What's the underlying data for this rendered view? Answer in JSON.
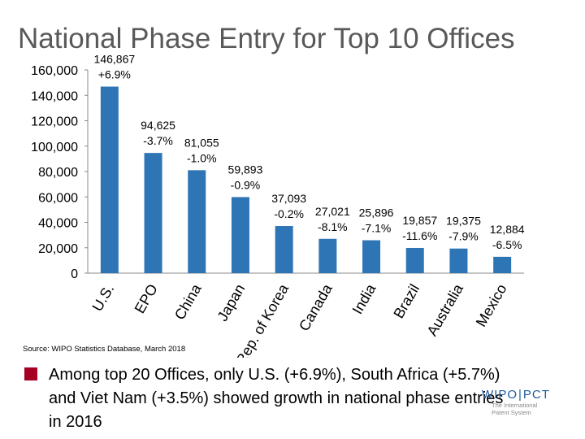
{
  "slide": {
    "title": "National Phase Entry for Top 10 Offices",
    "source": "Source: WIPO Statistics Database, March 2018",
    "bullet": "Among top 20 Offices, only U.S. (+6.9%), South Africa (+5.7%) and Viet Nam (+3.5%) showed growth in national phase entries in 2016",
    "bullet_color": "#a50021",
    "logo": {
      "left": "WIPO",
      "separator": "|",
      "right": "PCT",
      "line1": "The International",
      "line2": "Patent System",
      "color": "#1f5b9e"
    }
  },
  "chart_data": {
    "type": "bar",
    "title": "National Phase Entry for Top 10 Offices",
    "categories": [
      "U.S.",
      "EPO",
      "China",
      "Japan",
      "Rep. of Korea",
      "Canada",
      "India",
      "Brazil",
      "Australia",
      "Mexico"
    ],
    "values": [
      146867,
      94625,
      81055,
      59893,
      37093,
      27021,
      25896,
      19857,
      19375,
      12884
    ],
    "value_labels": [
      "146,867",
      "94,625",
      "81,055",
      "59,893",
      "37,093",
      "27,021",
      "25,896",
      "19,857",
      "19,375",
      "12,884"
    ],
    "growth_labels": [
      "+6.9%",
      "-3.7%",
      "-1.0%",
      "-0.9%",
      "-0.2%",
      "-8.1%",
      "-7.1%",
      "-11.6%",
      "-7.9%",
      "-6.5%"
    ],
    "yticks": [
      0,
      20000,
      40000,
      60000,
      80000,
      100000,
      120000,
      140000,
      160000
    ],
    "ytick_labels": [
      "0",
      "20,000",
      "40,000",
      "60,000",
      "80,000",
      "100,000",
      "120,000",
      "140,000",
      "160,000"
    ],
    "ylim": [
      0,
      160000
    ],
    "xlabel": "",
    "ylabel": "",
    "grid": false,
    "bar_color": "#2e75b6"
  }
}
